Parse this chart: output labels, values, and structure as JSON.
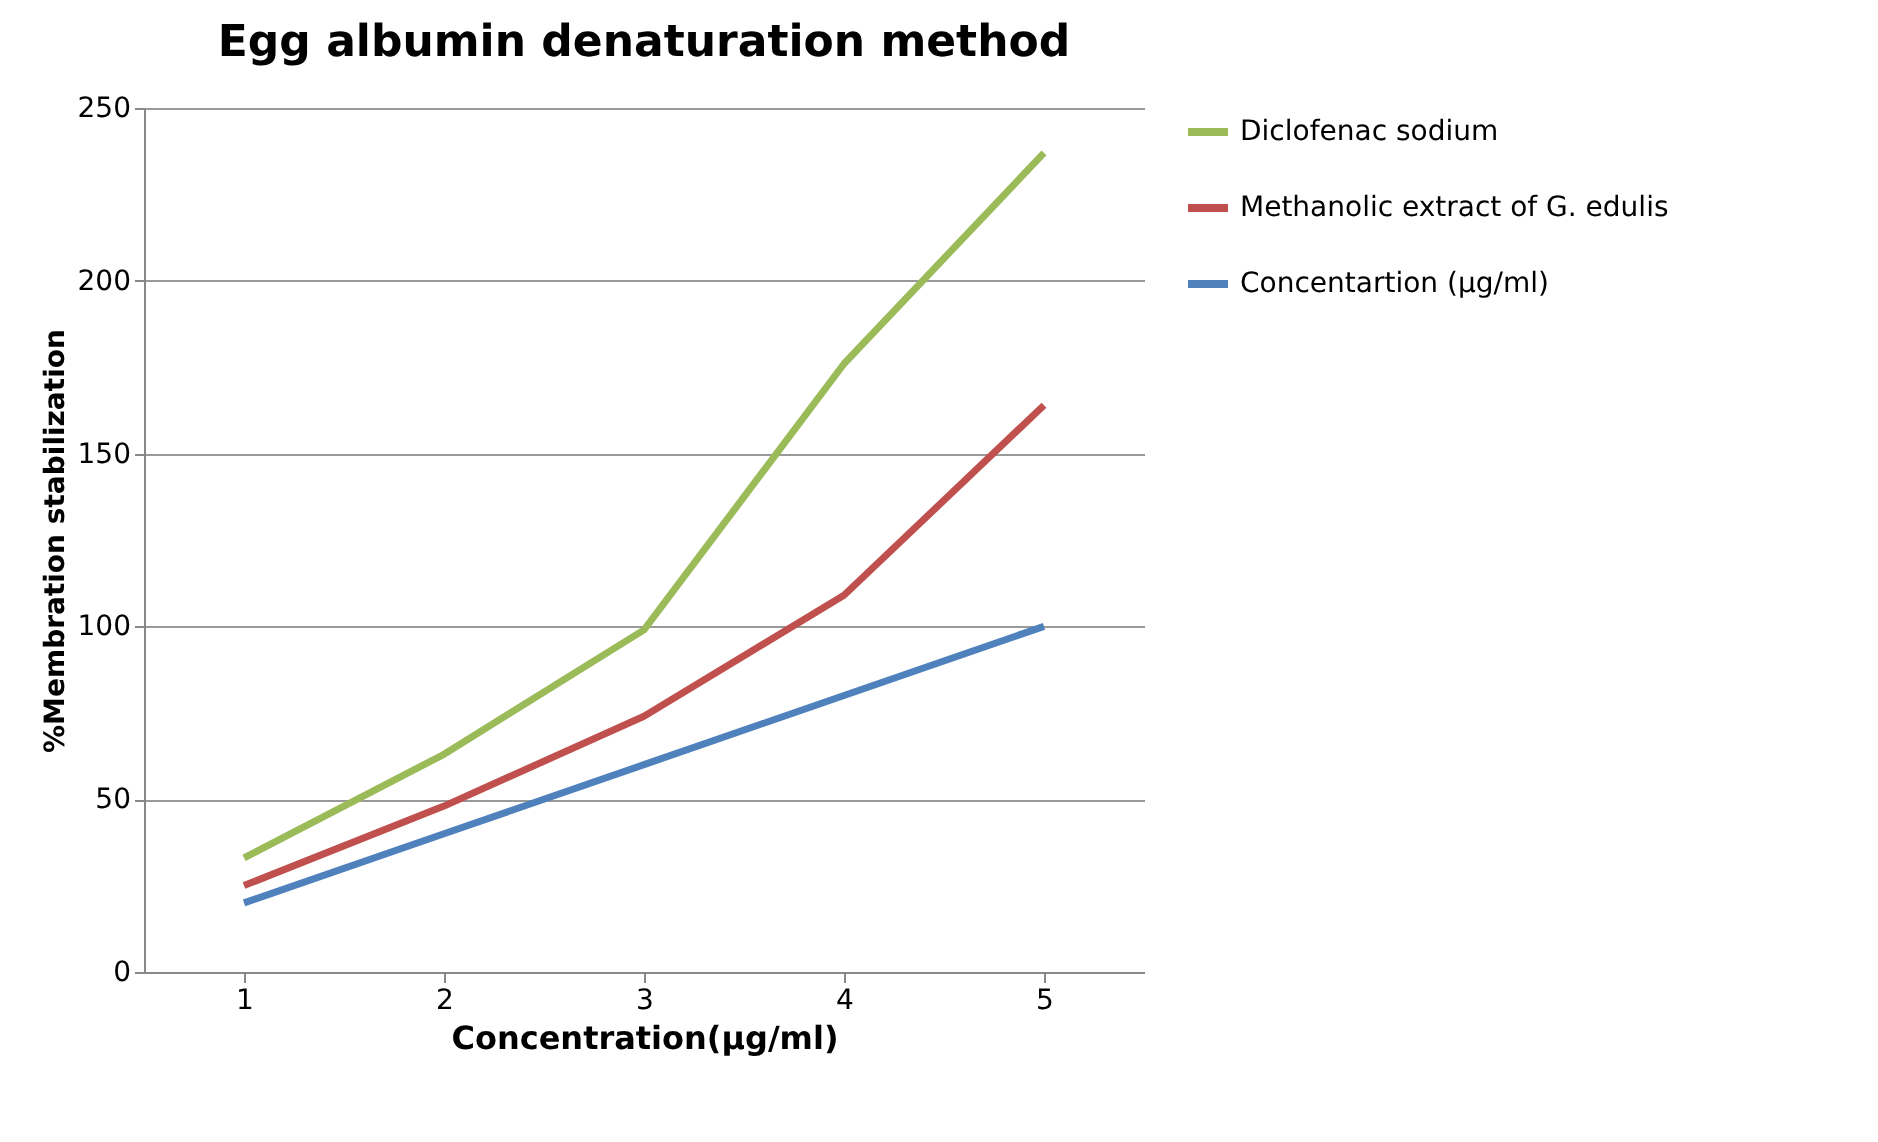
{
  "chart_data": {
    "type": "line",
    "title": "Egg albumin denaturation method",
    "xlabel": "Concentration(µg/ml)",
    "ylabel": "%Membration stabilization",
    "categories": [
      "1",
      "2",
      "3",
      "4",
      "5"
    ],
    "series": [
      {
        "name": "Diclofenac sodium",
        "color": "#9bbb59",
        "values": [
          33,
          63,
          99,
          176,
          237
        ]
      },
      {
        "name": "Methanolic extract of G. edulis",
        "color": "#c0504d",
        "values": [
          25,
          48,
          74,
          109,
          164
        ]
      },
      {
        "name": "Concentartion (µg/ml)",
        "color": "#4f81bd",
        "values": [
          20,
          40,
          60,
          80,
          100
        ]
      }
    ],
    "ylim": [
      0,
      250
    ],
    "yticks": [
      0,
      50,
      100,
      150,
      200,
      250
    ],
    "grid": "y",
    "legend": "right",
    "marker": "none",
    "line_style": "solid"
  }
}
